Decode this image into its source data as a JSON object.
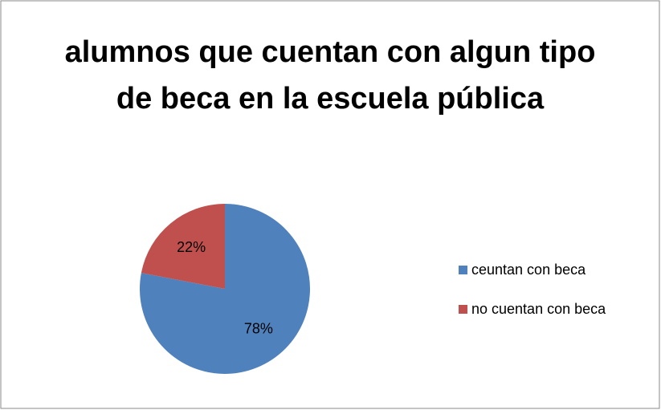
{
  "chart_data": {
    "type": "pie",
    "title": "alumnos que cuentan con algun tipo de beca en la escuela pública",
    "categories": [
      "ceuntan con beca",
      "no cuentan con beca"
    ],
    "values": [
      78,
      22
    ],
    "value_labels": [
      "78%",
      "22%"
    ],
    "colors": [
      "#4f81bd",
      "#c0504d"
    ],
    "legend": "right"
  }
}
